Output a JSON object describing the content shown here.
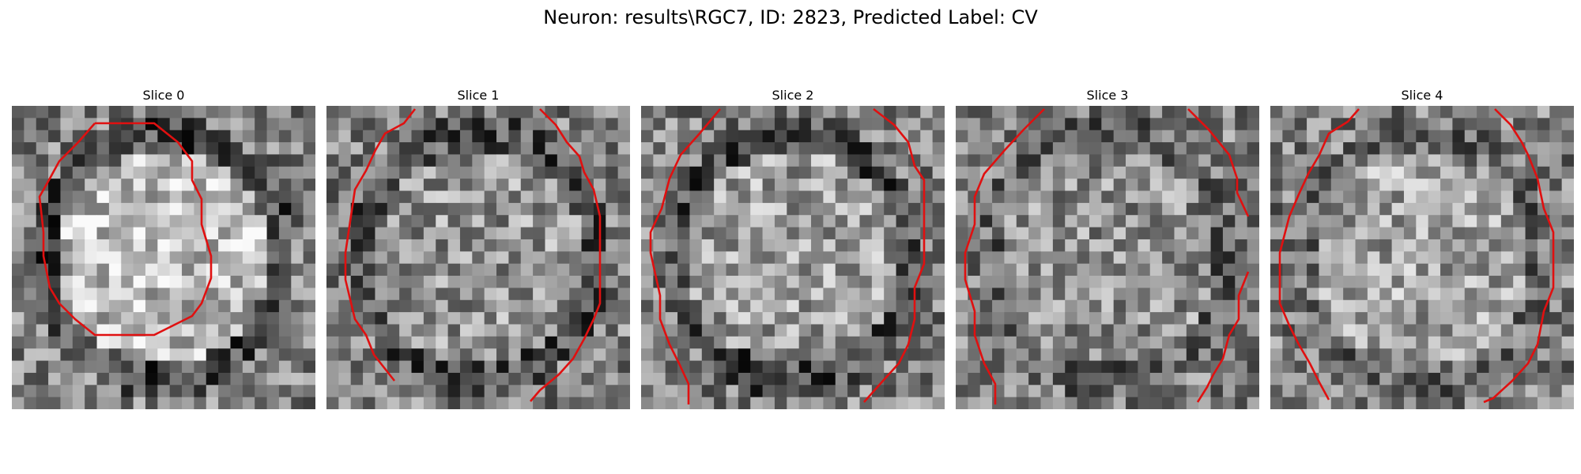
{
  "figure": {
    "title": "Neuron: results\\RGC7, ID: 2823, Predicted Label: CV"
  },
  "panels": [
    {
      "title": "Slice 0",
      "seed": 11,
      "center_brightness": 0.74,
      "rim_darkness": 0.28
    },
    {
      "title": "Slice 1",
      "seed": 23,
      "center_brightness": 0.58,
      "rim_darkness": 0.32
    },
    {
      "title": "Slice 2",
      "seed": 37,
      "center_brightness": 0.62,
      "rim_darkness": 0.3
    },
    {
      "title": "Slice 3",
      "seed": 53,
      "center_brightness": 0.56,
      "rim_darkness": 0.4
    },
    {
      "title": "Slice 4",
      "seed": 71,
      "center_brightness": 0.64,
      "rim_darkness": 0.42
    }
  ],
  "style": {
    "contour_color": "#e01010"
  }
}
